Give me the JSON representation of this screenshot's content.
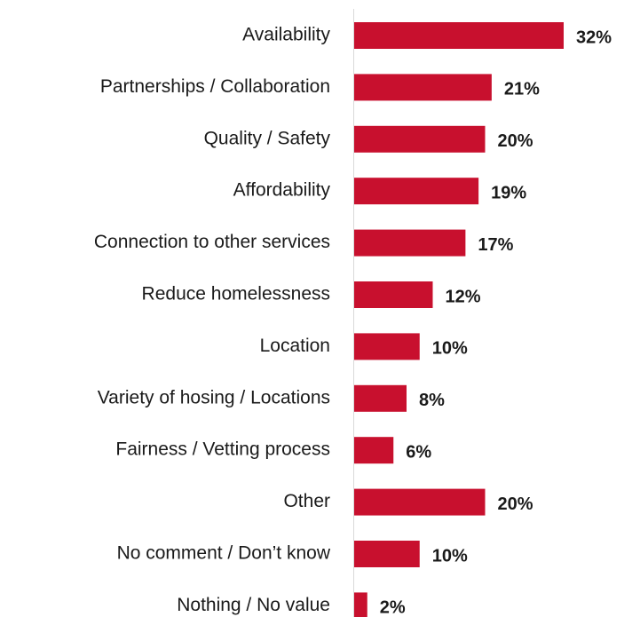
{
  "chart_data": {
    "type": "bar",
    "orientation": "horizontal",
    "color": "#c8102e",
    "categories": [
      "Availability",
      "Partnerships / Collaboration",
      "Quality / Safety",
      "Affordability",
      "Connection to other services",
      "Reduce homelessness",
      "Location",
      "Variety of hosing / Locations",
      "Fairness / Vetting process",
      "Other",
      "No comment / Don’t know",
      "Nothing / No value"
    ],
    "values": [
      32,
      21,
      20,
      19,
      17,
      12,
      10,
      8,
      6,
      20,
      10,
      2
    ],
    "value_labels": [
      "32%",
      "21%",
      "20%",
      "19%",
      "17%",
      "12%",
      "10%",
      "8%",
      "6%",
      "20%",
      "10%",
      "2%"
    ]
  }
}
